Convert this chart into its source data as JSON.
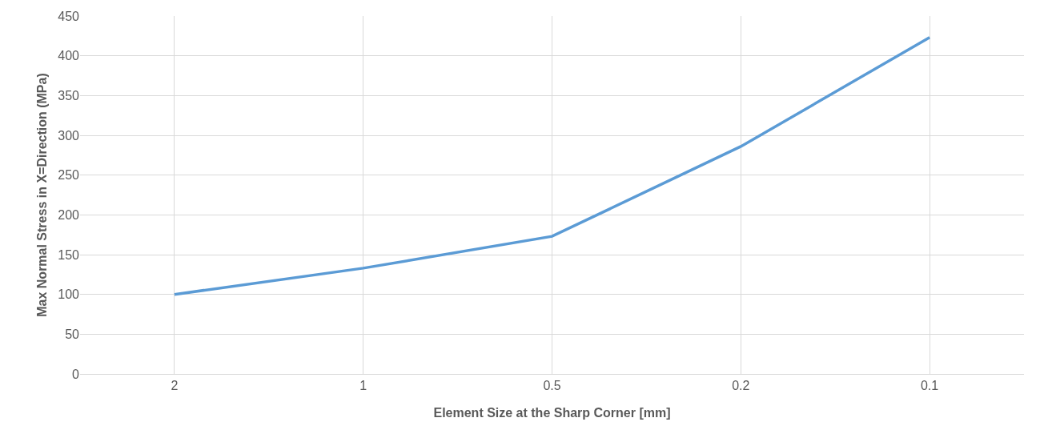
{
  "chart_data": {
    "type": "line",
    "xlabel": "Element Size at the Sharp Corner [mm]",
    "ylabel": "Max Normal Stress in X=Direction (MPa)",
    "categories": [
      "2",
      "1",
      "0.5",
      "0.2",
      "0.1"
    ],
    "series": [
      {
        "color": "#5b9bd5",
        "values": [
          100,
          133,
          173,
          286,
          423
        ]
      }
    ],
    "ylim": [
      0,
      450
    ],
    "yticks": [
      0,
      50,
      100,
      150,
      200,
      250,
      300,
      350,
      400,
      450
    ],
    "grid": true,
    "marker": "none",
    "line_style": "solid"
  }
}
